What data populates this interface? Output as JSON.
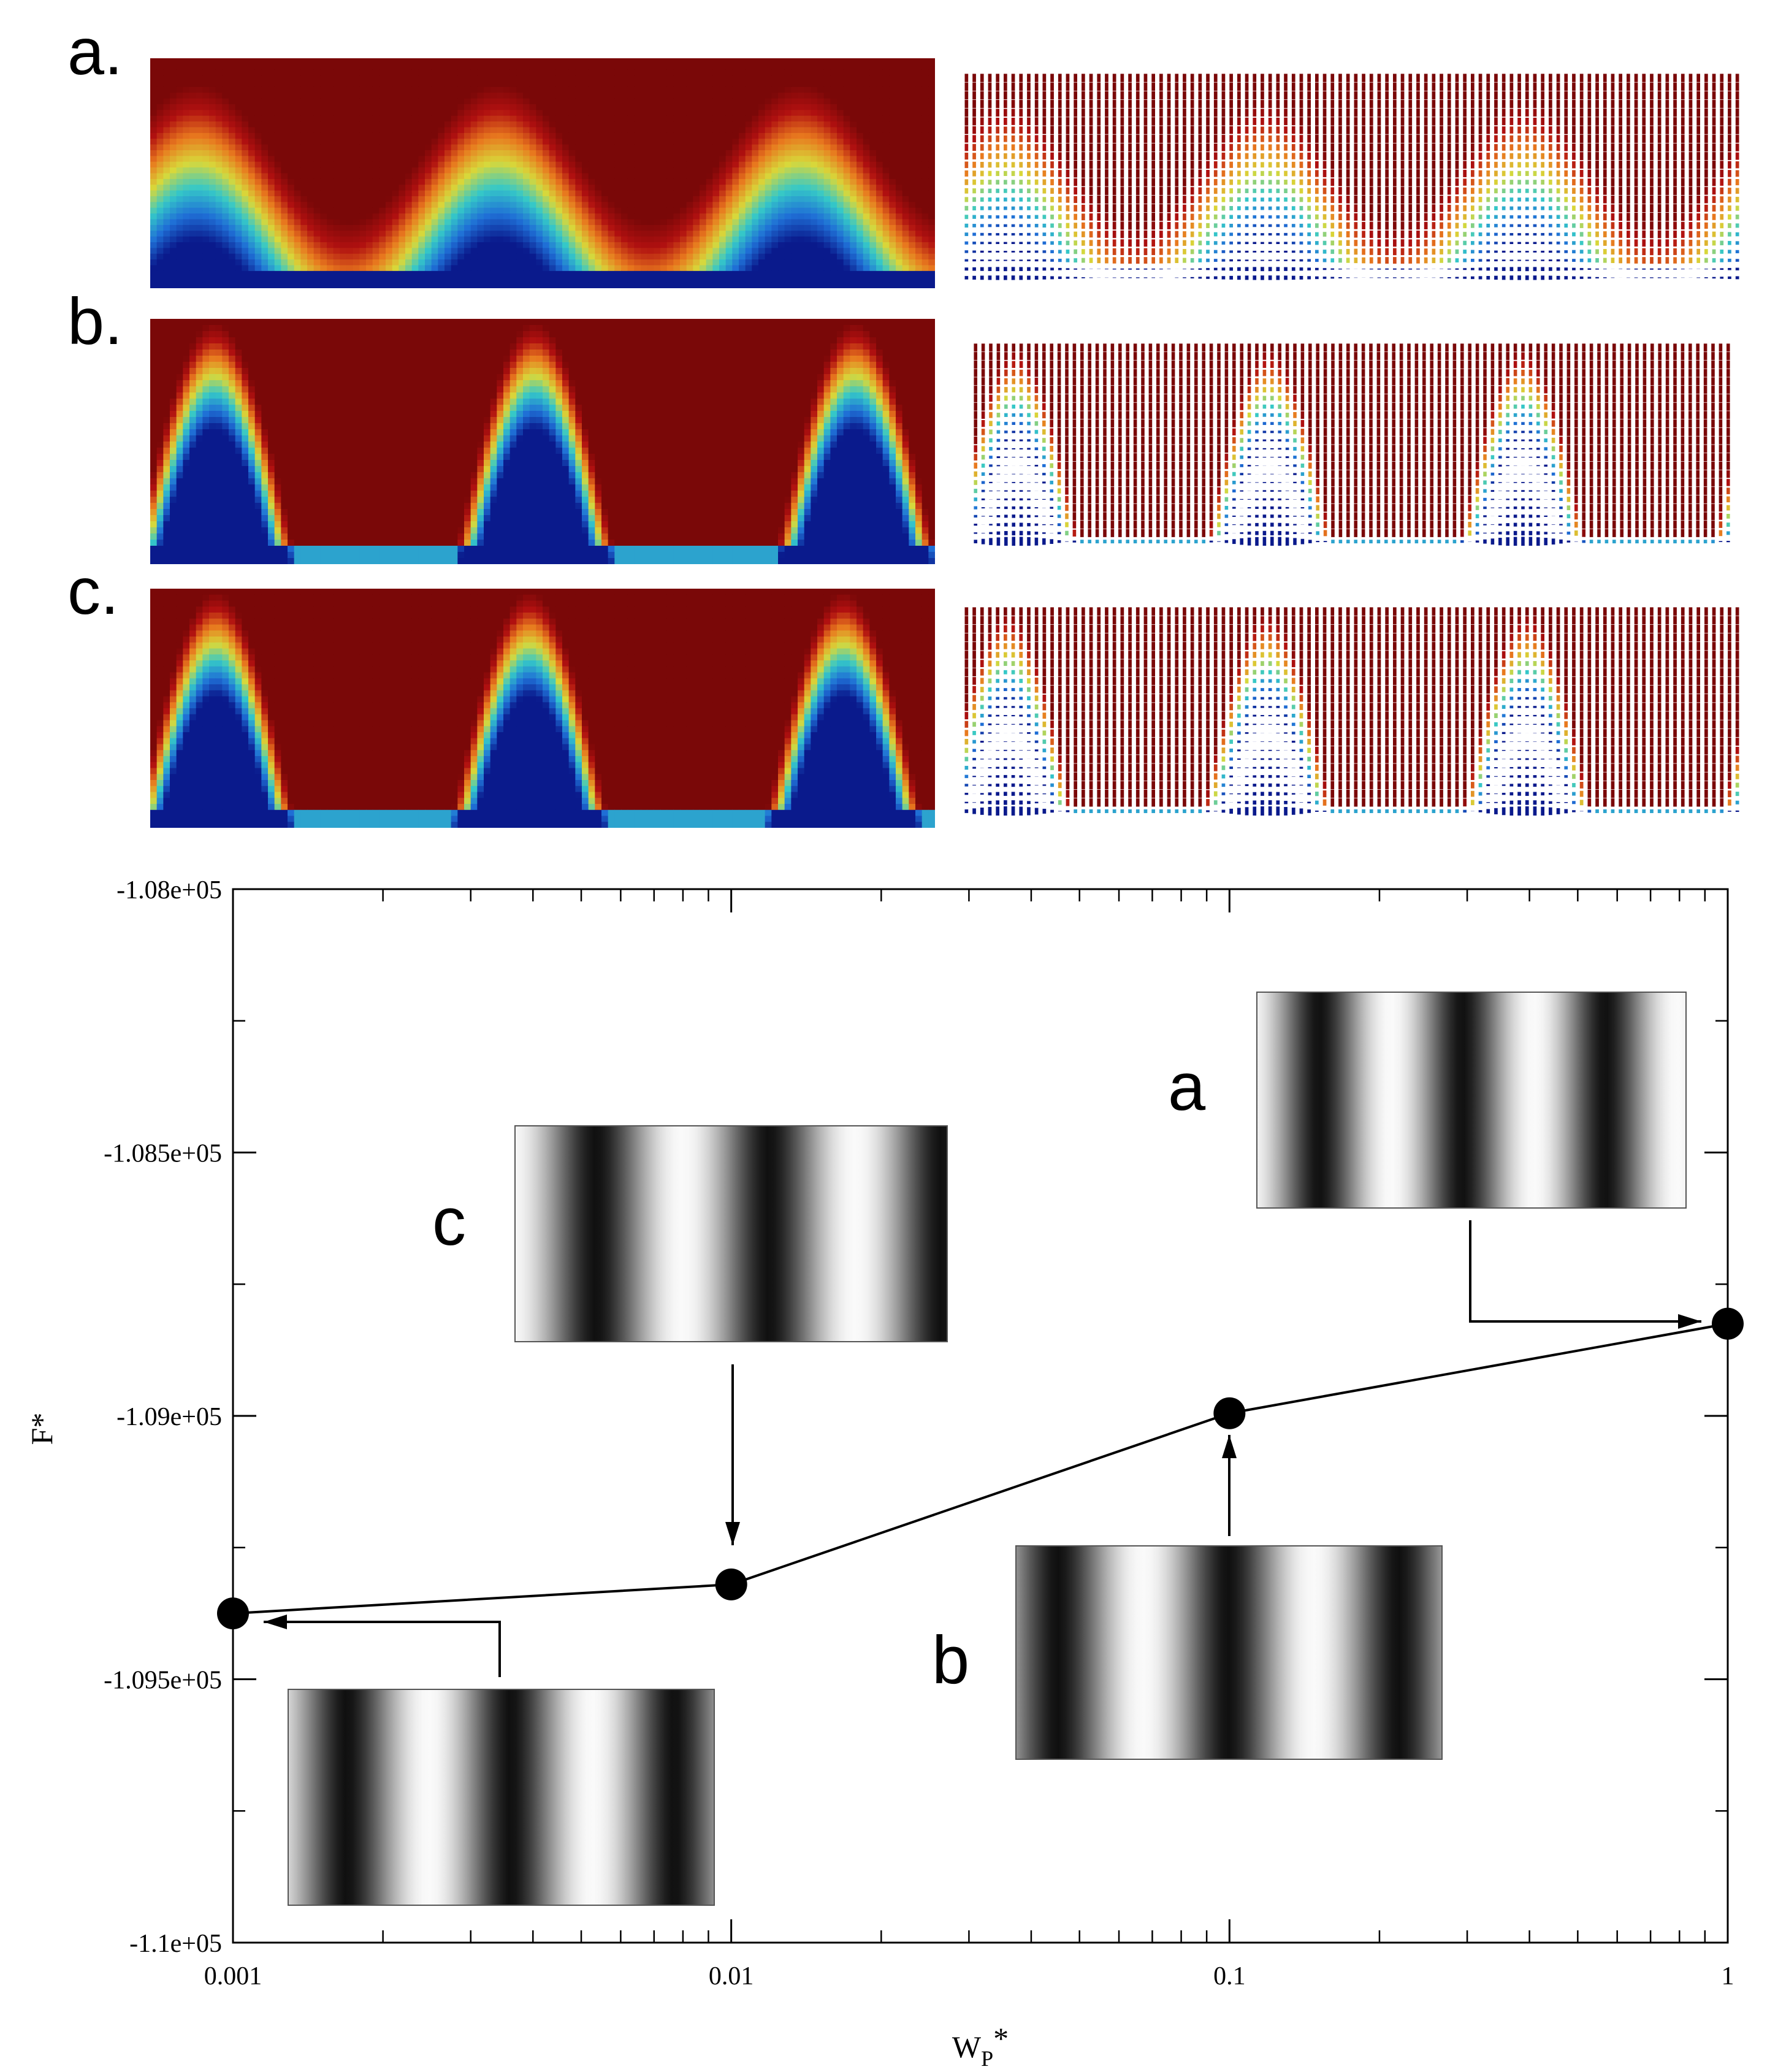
{
  "panels": [
    {
      "label": "a."
    },
    {
      "label": "b."
    },
    {
      "label": "c."
    }
  ],
  "colormap": [
    "#0a1a8c",
    "#1f6fd6",
    "#35c8c8",
    "#d8d83a",
    "#e8781e",
    "#b01010",
    "#7a0808"
  ],
  "chart_data": {
    "type": "line",
    "x": [
      0.001,
      0.01,
      0.1,
      1
    ],
    "y": [
      -109375,
      -109320,
      -108995,
      -108825
    ],
    "xscale": "log",
    "xlim": [
      0.001,
      1
    ],
    "ylim": [
      -110000,
      -108000
    ],
    "xticks": [
      0.001,
      0.01,
      0.1,
      1
    ],
    "xtick_labels": [
      "0.001",
      "0.01",
      "0.1",
      "1"
    ],
    "yticks": [
      -110000,
      -109500,
      -109000,
      -108500,
      -108000
    ],
    "ytick_labels": [
      "-1.1e+05",
      "-1.095e+05",
      "-1.09e+05",
      "-1.085e+05",
      "-1.08e+05"
    ],
    "xlabel": "W",
    "xlabel_sub": "P",
    "xlabel_sup": "*",
    "ylabel": "F*",
    "insets": [
      {
        "label": "a",
        "point_index": 3
      },
      {
        "label": "b",
        "point_index": 2
      },
      {
        "label": "c",
        "point_index": 1
      },
      {
        "label": "",
        "point_index": 0
      }
    ]
  }
}
